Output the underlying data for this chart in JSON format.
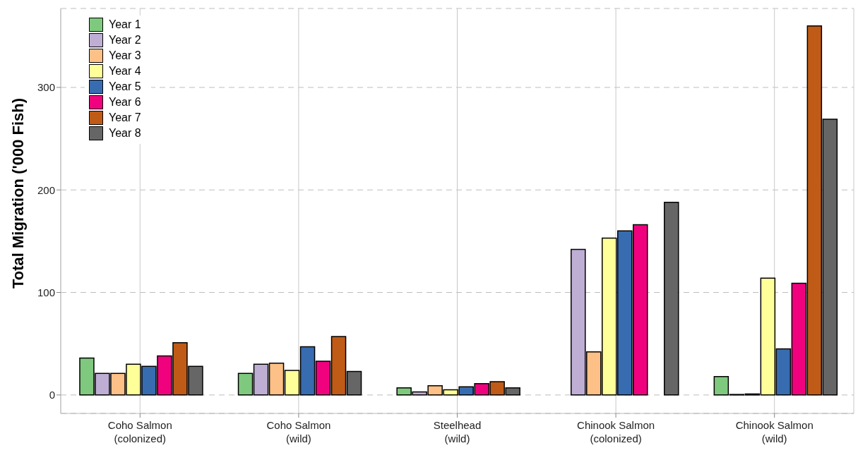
{
  "chart_data": {
    "type": "bar",
    "ylabel": "Total Migration ('000 Fish)",
    "categories": [
      "Coho Salmon\n(colonized)",
      "Coho Salmon\n(wild)",
      "Steelhead\n(wild)",
      "Chinook Salmon\n(colonized)",
      "Chinook Salmon\n(wild)"
    ],
    "series": [
      {
        "name": "Year 1",
        "color": "#7fc97f",
        "values": [
          36,
          21,
          7,
          null,
          18
        ]
      },
      {
        "name": "Year 2",
        "color": "#beaed4",
        "values": [
          21,
          30,
          3,
          142,
          0.5
        ]
      },
      {
        "name": "Year 3",
        "color": "#fdc086",
        "values": [
          21,
          31,
          9,
          42,
          1
        ]
      },
      {
        "name": "Year 4",
        "color": "#ffff99",
        "values": [
          30,
          24,
          5,
          153,
          114
        ]
      },
      {
        "name": "Year 5",
        "color": "#386cb0",
        "values": [
          28,
          47,
          8,
          160,
          45
        ]
      },
      {
        "name": "Year 6",
        "color": "#f0027f",
        "values": [
          38,
          33,
          11,
          166,
          109
        ]
      },
      {
        "name": "Year 7",
        "color": "#bf5b17",
        "values": [
          51,
          57,
          13,
          null,
          360
        ]
      },
      {
        "name": "Year 8",
        "color": "#666666",
        "values": [
          28,
          23,
          7,
          188,
          269
        ]
      }
    ],
    "ylim": [
      -18,
      377
    ],
    "yticks": [
      0,
      100,
      200,
      300
    ],
    "grid": true,
    "legend": "top left"
  }
}
